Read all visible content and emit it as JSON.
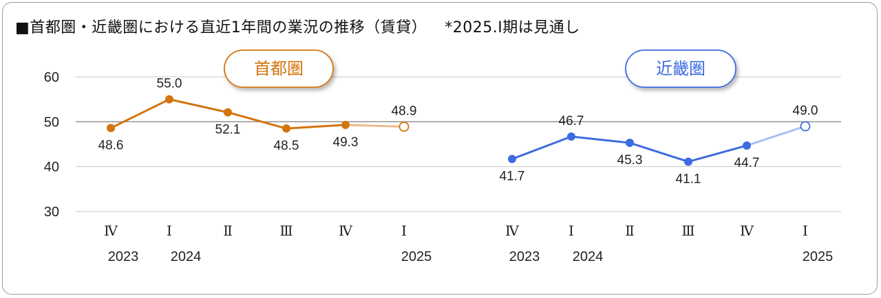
{
  "title": {
    "main": "■首都圏・近畿圏における直近1年間の業況の推移（賃貸）",
    "note": "*2025.Ⅰ期は見通し"
  },
  "colors": {
    "shutoken": "#d4740c",
    "shutoken_forecast": "#edb98c",
    "kinki": "#3d6be0",
    "kinki_forecast": "#a8bff5",
    "grid": "#c8c8c8",
    "grid_50": "#8a8a8a"
  },
  "chart_data": [
    {
      "type": "line",
      "title": "首都圏",
      "categories": [
        "Ⅳ",
        "Ⅰ",
        "Ⅱ",
        "Ⅲ",
        "Ⅳ",
        "Ⅰ"
      ],
      "years": [
        "2023",
        "2024",
        "",
        "",
        "",
        "2025"
      ],
      "values": [
        48.6,
        55.0,
        52.1,
        48.5,
        49.3,
        48.9
      ],
      "labels": [
        "48.6",
        "55.0",
        "52.1",
        "48.5",
        "49.3",
        "48.9"
      ],
      "forecast_index": 5,
      "ylim": [
        30,
        60
      ],
      "yticks": [
        "30",
        "40",
        "50",
        "60"
      ],
      "grid": true
    },
    {
      "type": "line",
      "title": "近畿圏",
      "categories": [
        "Ⅳ",
        "Ⅰ",
        "Ⅱ",
        "Ⅲ",
        "Ⅳ",
        "Ⅰ"
      ],
      "years": [
        "2023",
        "2024",
        "",
        "",
        "",
        "2025"
      ],
      "values": [
        41.7,
        46.7,
        45.3,
        41.1,
        44.7,
        49.0
      ],
      "labels": [
        "41.7",
        "46.7",
        "45.3",
        "41.1",
        "44.7",
        "49.0"
      ],
      "forecast_index": 5,
      "ylim": [
        30,
        60
      ],
      "yticks": [
        "30",
        "40",
        "50",
        "60"
      ],
      "grid": true
    }
  ]
}
